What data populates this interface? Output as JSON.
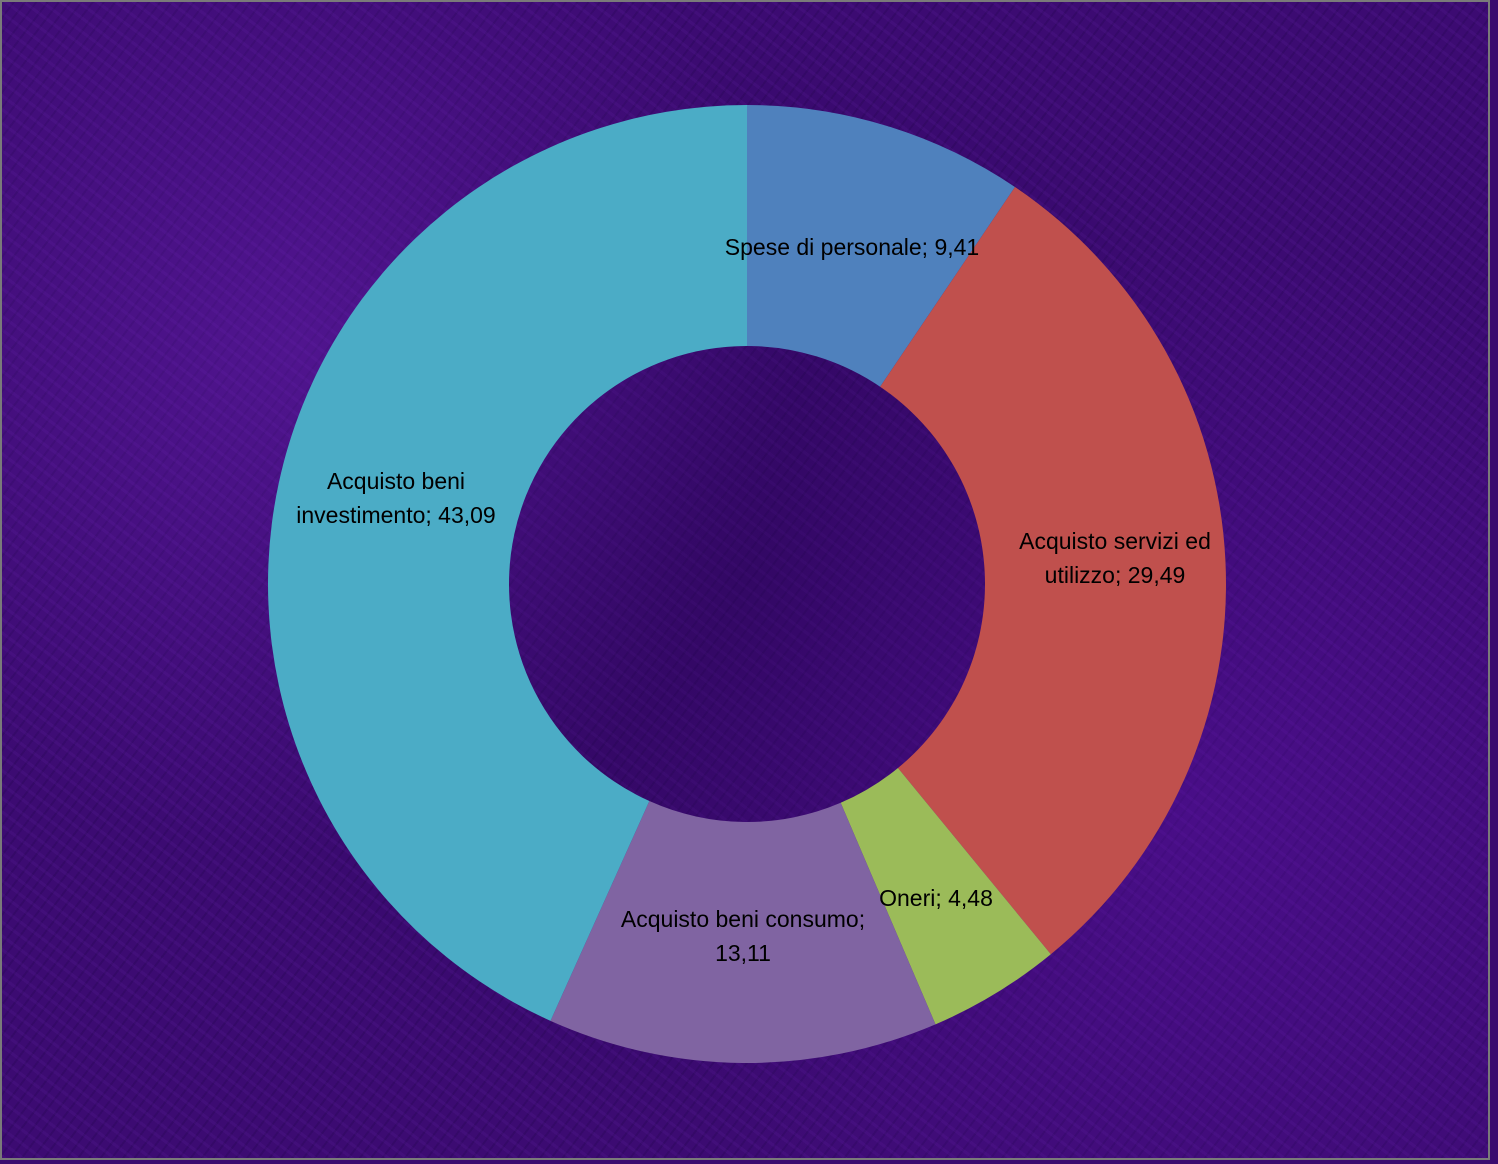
{
  "chart_data": {
    "type": "pie",
    "style": "donut",
    "slices": [
      {
        "name": "Spese di personale",
        "value": 9.41,
        "label_lines": [
          "Spese di personale; 9,41"
        ],
        "color": "#4f81bd"
      },
      {
        "name": "Acquisto servizi ed utilizzo",
        "value": 29.49,
        "label_lines": [
          "Acquisto servizi ed",
          "utilizzo; 29,49"
        ],
        "color": "#c0504d"
      },
      {
        "name": "Oneri",
        "value": 4.48,
        "label_lines": [
          "Oneri; 4,48"
        ],
        "color": "#9bbb59"
      },
      {
        "name": "Acquisto beni consumo",
        "value": 13.11,
        "label_lines": [
          "Acquisto beni consumo;",
          "13,11"
        ],
        "color": "#8064a2"
      },
      {
        "name": "Acquisto beni investimento",
        "value": 43.09,
        "label_lines": [
          "Acquisto beni",
          "investimento; 43,09"
        ],
        "color": "#4bacc6"
      }
    ],
    "start_angle_deg": 0,
    "direction": "clockwise",
    "legend": "none"
  }
}
